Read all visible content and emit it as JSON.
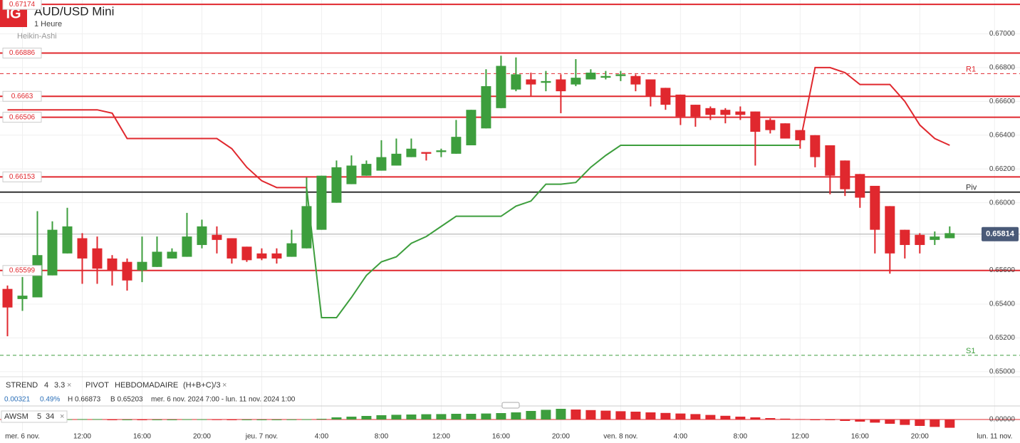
{
  "chart_data": {
    "type": "candlestick",
    "logo": "IG",
    "title": "AUD/USD Mini",
    "subtitle": "1 Heure",
    "style_label": "Heikin-Ashi",
    "up_color": "#3d9e3d",
    "down_color": "#e0282e",
    "x": [
      7,
      8,
      9,
      10,
      11,
      12,
      13,
      14,
      15,
      16,
      17,
      18,
      19,
      20,
      21,
      22,
      23,
      24,
      25,
      26,
      27,
      28,
      29,
      30,
      31,
      32,
      33,
      34,
      35,
      36,
      37,
      38,
      39,
      40,
      41,
      42,
      43,
      44,
      45,
      46,
      47,
      48,
      49,
      50,
      51,
      52,
      53,
      54,
      55,
      56,
      57,
      58,
      59,
      60,
      61,
      62,
      63,
      64,
      65,
      66,
      67,
      68,
      69,
      70
    ],
    "open": [
      0.6549,
      0.6543,
      0.6544,
      0.6557,
      0.657,
      0.6579,
      0.6573,
      0.6567,
      0.6565,
      0.656,
      0.6562,
      0.6567,
      0.6568,
      0.6575,
      0.6581,
      0.6579,
      0.6574,
      0.657,
      0.657,
      0.6568,
      0.6573,
      0.6584,
      0.66,
      0.6611,
      0.6616,
      0.6619,
      0.6622,
      0.6627,
      0.663,
      0.663,
      0.6629,
      0.6634,
      0.6644,
      0.6656,
      0.6667,
      0.6673,
      0.6671,
      0.6673,
      0.667,
      0.6673,
      0.6674,
      0.6675,
      0.6675,
      0.6673,
      0.6668,
      0.6664,
      0.6658,
      0.6656,
      0.6655,
      0.6654,
      0.6654,
      0.6649,
      0.6647,
      0.6643,
      0.664,
      0.6634,
      0.6625,
      0.6617,
      0.661,
      0.6598,
      0.6584,
      0.6581,
      0.6578,
      0.6579
    ],
    "high": [
      0.6551,
      0.6556,
      0.6595,
      0.6589,
      0.6597,
      0.6582,
      0.658,
      0.6569,
      0.6567,
      0.658,
      0.658,
      0.6573,
      0.6594,
      0.659,
      0.6586,
      0.6579,
      0.6574,
      0.6573,
      0.6573,
      0.6584,
      0.6615,
      0.6616,
      0.6625,
      0.6628,
      0.6625,
      0.6637,
      0.6638,
      0.6638,
      0.663,
      0.6632,
      0.6649,
      0.6655,
      0.6679,
      0.6687,
      0.6686,
      0.6677,
      0.6678,
      0.6676,
      0.6685,
      0.6679,
      0.6678,
      0.6678,
      0.6676,
      0.6673,
      0.6668,
      0.6664,
      0.6658,
      0.6657,
      0.6656,
      0.6657,
      0.6654,
      0.665,
      0.6647,
      0.6643,
      0.664,
      0.6634,
      0.6625,
      0.6617,
      0.661,
      0.6598,
      0.6584,
      0.6582,
      0.6583,
      0.6586
    ],
    "low": [
      0.6521,
      0.6536,
      0.6544,
      0.6557,
      0.657,
      0.6552,
      0.6552,
      0.6551,
      0.6548,
      0.6553,
      0.6562,
      0.6567,
      0.6568,
      0.6573,
      0.657,
      0.6564,
      0.6565,
      0.6566,
      0.6564,
      0.6568,
      0.6573,
      0.6584,
      0.66,
      0.6611,
      0.6616,
      0.6619,
      0.6622,
      0.6627,
      0.6625,
      0.6627,
      0.6629,
      0.6634,
      0.6644,
      0.6656,
      0.6666,
      0.6663,
      0.6666,
      0.6653,
      0.6669,
      0.6673,
      0.6673,
      0.6672,
      0.6666,
      0.6657,
      0.6655,
      0.6646,
      0.6645,
      0.6649,
      0.6647,
      0.6649,
      0.6622,
      0.6641,
      0.6638,
      0.6632,
      0.6621,
      0.6605,
      0.6604,
      0.6597,
      0.657,
      0.6558,
      0.6567,
      0.657,
      0.6575,
      0.6579
    ],
    "close": [
      0.6538,
      0.6545,
      0.6569,
      0.6584,
      0.6586,
      0.6567,
      0.6561,
      0.656,
      0.6554,
      0.6565,
      0.6571,
      0.6571,
      0.658,
      0.6586,
      0.6578,
      0.6567,
      0.6566,
      0.6567,
      0.6567,
      0.6576,
      0.6598,
      0.6616,
      0.6621,
      0.6622,
      0.6623,
      0.6627,
      0.6629,
      0.6632,
      0.6629,
      0.6631,
      0.6639,
      0.6655,
      0.6669,
      0.6681,
      0.6676,
      0.667,
      0.6672,
      0.6666,
      0.6674,
      0.6677,
      0.6675,
      0.6676,
      0.667,
      0.6663,
      0.6658,
      0.6651,
      0.6651,
      0.6652,
      0.6652,
      0.6652,
      0.6642,
      0.6643,
      0.6638,
      0.6637,
      0.6627,
      0.6616,
      0.6608,
      0.6603,
      0.6584,
      0.657,
      0.6575,
      0.6575,
      0.658,
      0.6582
    ],
    "xlim": [
      6.5,
      74.7
    ],
    "ylim": [
      0.6497,
      0.672
    ],
    "yticks": [
      {
        "value": 0.65,
        "label": "0.65000"
      },
      {
        "value": 0.652,
        "label": "0.65200"
      },
      {
        "value": 0.654,
        "label": "0.65400"
      },
      {
        "value": 0.656,
        "label": "0.65600"
      },
      {
        "value": 0.658,
        "label": "0.65800"
      },
      {
        "value": 0.66,
        "label": "0.66000"
      },
      {
        "value": 0.662,
        "label": "0.66200"
      },
      {
        "value": 0.664,
        "label": "0.66400"
      },
      {
        "value": 0.666,
        "label": "0.66600"
      },
      {
        "value": 0.668,
        "label": "0.66800"
      },
      {
        "value": 0.67,
        "label": "0.67000"
      }
    ],
    "xticks": [
      {
        "value": 8,
        "label": "mer. 6 nov."
      },
      {
        "value": 12,
        "label": "12:00"
      },
      {
        "value": 16,
        "label": "16:00"
      },
      {
        "value": 20,
        "label": "20:00"
      },
      {
        "value": 24,
        "label": "jeu. 7 nov."
      },
      {
        "value": 28,
        "label": "4:00"
      },
      {
        "value": 32,
        "label": "8:00"
      },
      {
        "value": 36,
        "label": "12:00"
      },
      {
        "value": 40,
        "label": "16:00"
      },
      {
        "value": 44,
        "label": "20:00"
      },
      {
        "value": 48,
        "label": "ven. 8 nov."
      },
      {
        "value": 52,
        "label": "4:00"
      },
      {
        "value": 56,
        "label": "8:00"
      },
      {
        "value": 60,
        "label": "12:00"
      },
      {
        "value": 64,
        "label": "16:00"
      },
      {
        "value": 68,
        "label": "20:00"
      },
      {
        "value": 73,
        "label": "lun. 11 nov."
      }
    ],
    "grid": true,
    "levels": {
      "color": "#e0282e",
      "values": [
        0.67174,
        0.66886,
        0.6663,
        0.66506,
        0.66153,
        0.65599
      ]
    },
    "pivots": [
      {
        "name": "R1",
        "value": 0.66764,
        "color": "#e0282e",
        "dashed": true
      },
      {
        "name": "Piv",
        "value": 0.66063,
        "color": "#333333",
        "dashed": false
      },
      {
        "name": "S1",
        "value": 0.65097,
        "color": "#3d9e3d",
        "dashed": true
      }
    ],
    "last_price": 0.65814,
    "trend_lines": [
      {
        "color": "#e0282e",
        "x": [
          7,
          8,
          9,
          10,
          11,
          12,
          13,
          14,
          15,
          16,
          17,
          18,
          19,
          20,
          21,
          22,
          23,
          24,
          25,
          26,
          27
        ],
        "values": [
          0.6655,
          0.6655,
          0.6655,
          0.6655,
          0.6655,
          0.6655,
          0.6655,
          0.6653,
          0.6638,
          0.6638,
          0.6638,
          0.6638,
          0.6638,
          0.6638,
          0.6638,
          0.6632,
          0.6621,
          0.6613,
          0.6609,
          0.6609,
          0.6609
        ]
      },
      {
        "color": "#3d9e3d",
        "x": [
          27,
          28,
          29,
          30,
          31,
          32,
          33,
          34,
          35,
          36,
          37,
          38,
          39,
          40,
          41,
          42,
          43,
          44,
          45,
          46,
          47,
          48,
          49,
          50,
          51,
          52,
          53,
          54,
          55,
          56,
          57,
          58,
          59,
          60
        ],
        "values": [
          0.6609,
          0.6532,
          0.6532,
          0.6544,
          0.6557,
          0.6565,
          0.6568,
          0.6576,
          0.658,
          0.6586,
          0.6592,
          0.6592,
          0.6592,
          0.6592,
          0.6598,
          0.6601,
          0.6611,
          0.6611,
          0.6612,
          0.6621,
          0.6628,
          0.6634,
          0.6634,
          0.6634,
          0.6634,
          0.6634,
          0.6634,
          0.6634,
          0.6634,
          0.6634,
          0.6634,
          0.6634,
          0.6634,
          0.6634
        ]
      },
      {
        "color": "#e0282e",
        "x": [
          60,
          61,
          62,
          63,
          64,
          65,
          66,
          67,
          68,
          69,
          70
        ],
        "values": [
          0.6636,
          0.668,
          0.668,
          0.6677,
          0.667,
          0.667,
          0.667,
          0.666,
          0.6646,
          0.6638,
          0.6634
        ]
      }
    ],
    "legend": {
      "close_symbol": "×",
      "strend": [
        "STREND",
        "4",
        "3.3"
      ],
      "pivot": [
        "PIVOT",
        "HEBDOMADAIRE",
        "(H+B+C)/3"
      ]
    },
    "info": {
      "change": "0.00321",
      "change_pct": "0.49%",
      "high": "H 0.66873",
      "low": "B 0.65203",
      "range": "mer. 6 nov. 2024 7:00 - lun. 11 nov. 2024 1:00"
    },
    "awsm": {
      "type": "bar",
      "label": [
        "AWSM",
        "5",
        "34"
      ],
      "values": [
        1e-05,
        1e-05,
        2e-05,
        2e-05,
        2e-05,
        3e-05,
        3e-05,
        -2e-05,
        -2e-05,
        -3e-05,
        -3e-05,
        -2e-05,
        2e-05,
        2e-05,
        1e-05,
        -2e-05,
        -2e-05,
        -2e-05,
        -1e-05,
        1e-05,
        2e-05,
        5e-05,
        0.00015,
        0.0002,
        0.00025,
        0.0003,
        0.00033,
        0.00035,
        0.00037,
        0.00038,
        0.0004,
        0.0004,
        0.00042,
        0.00045,
        0.0005,
        0.0006,
        0.00068,
        0.00075,
        0.0007,
        0.00066,
        0.00062,
        0.00058,
        0.00055,
        0.0005,
        0.00046,
        0.00042,
        0.00038,
        0.00032,
        0.00026,
        0.0002,
        0.00015,
        0.0001,
        6e-05,
        3e-05,
        -2e-05,
        -5e-05,
        -0.0001,
        -0.00015,
        -0.00022,
        -0.0003,
        -0.00038,
        -0.00045,
        -0.00052,
        -0.00058
      ],
      "ylim": [
        -0.00065,
        0.00095
      ],
      "yticks": [
        {
          "value": 0,
          "label": "0.00000"
        }
      ]
    }
  }
}
